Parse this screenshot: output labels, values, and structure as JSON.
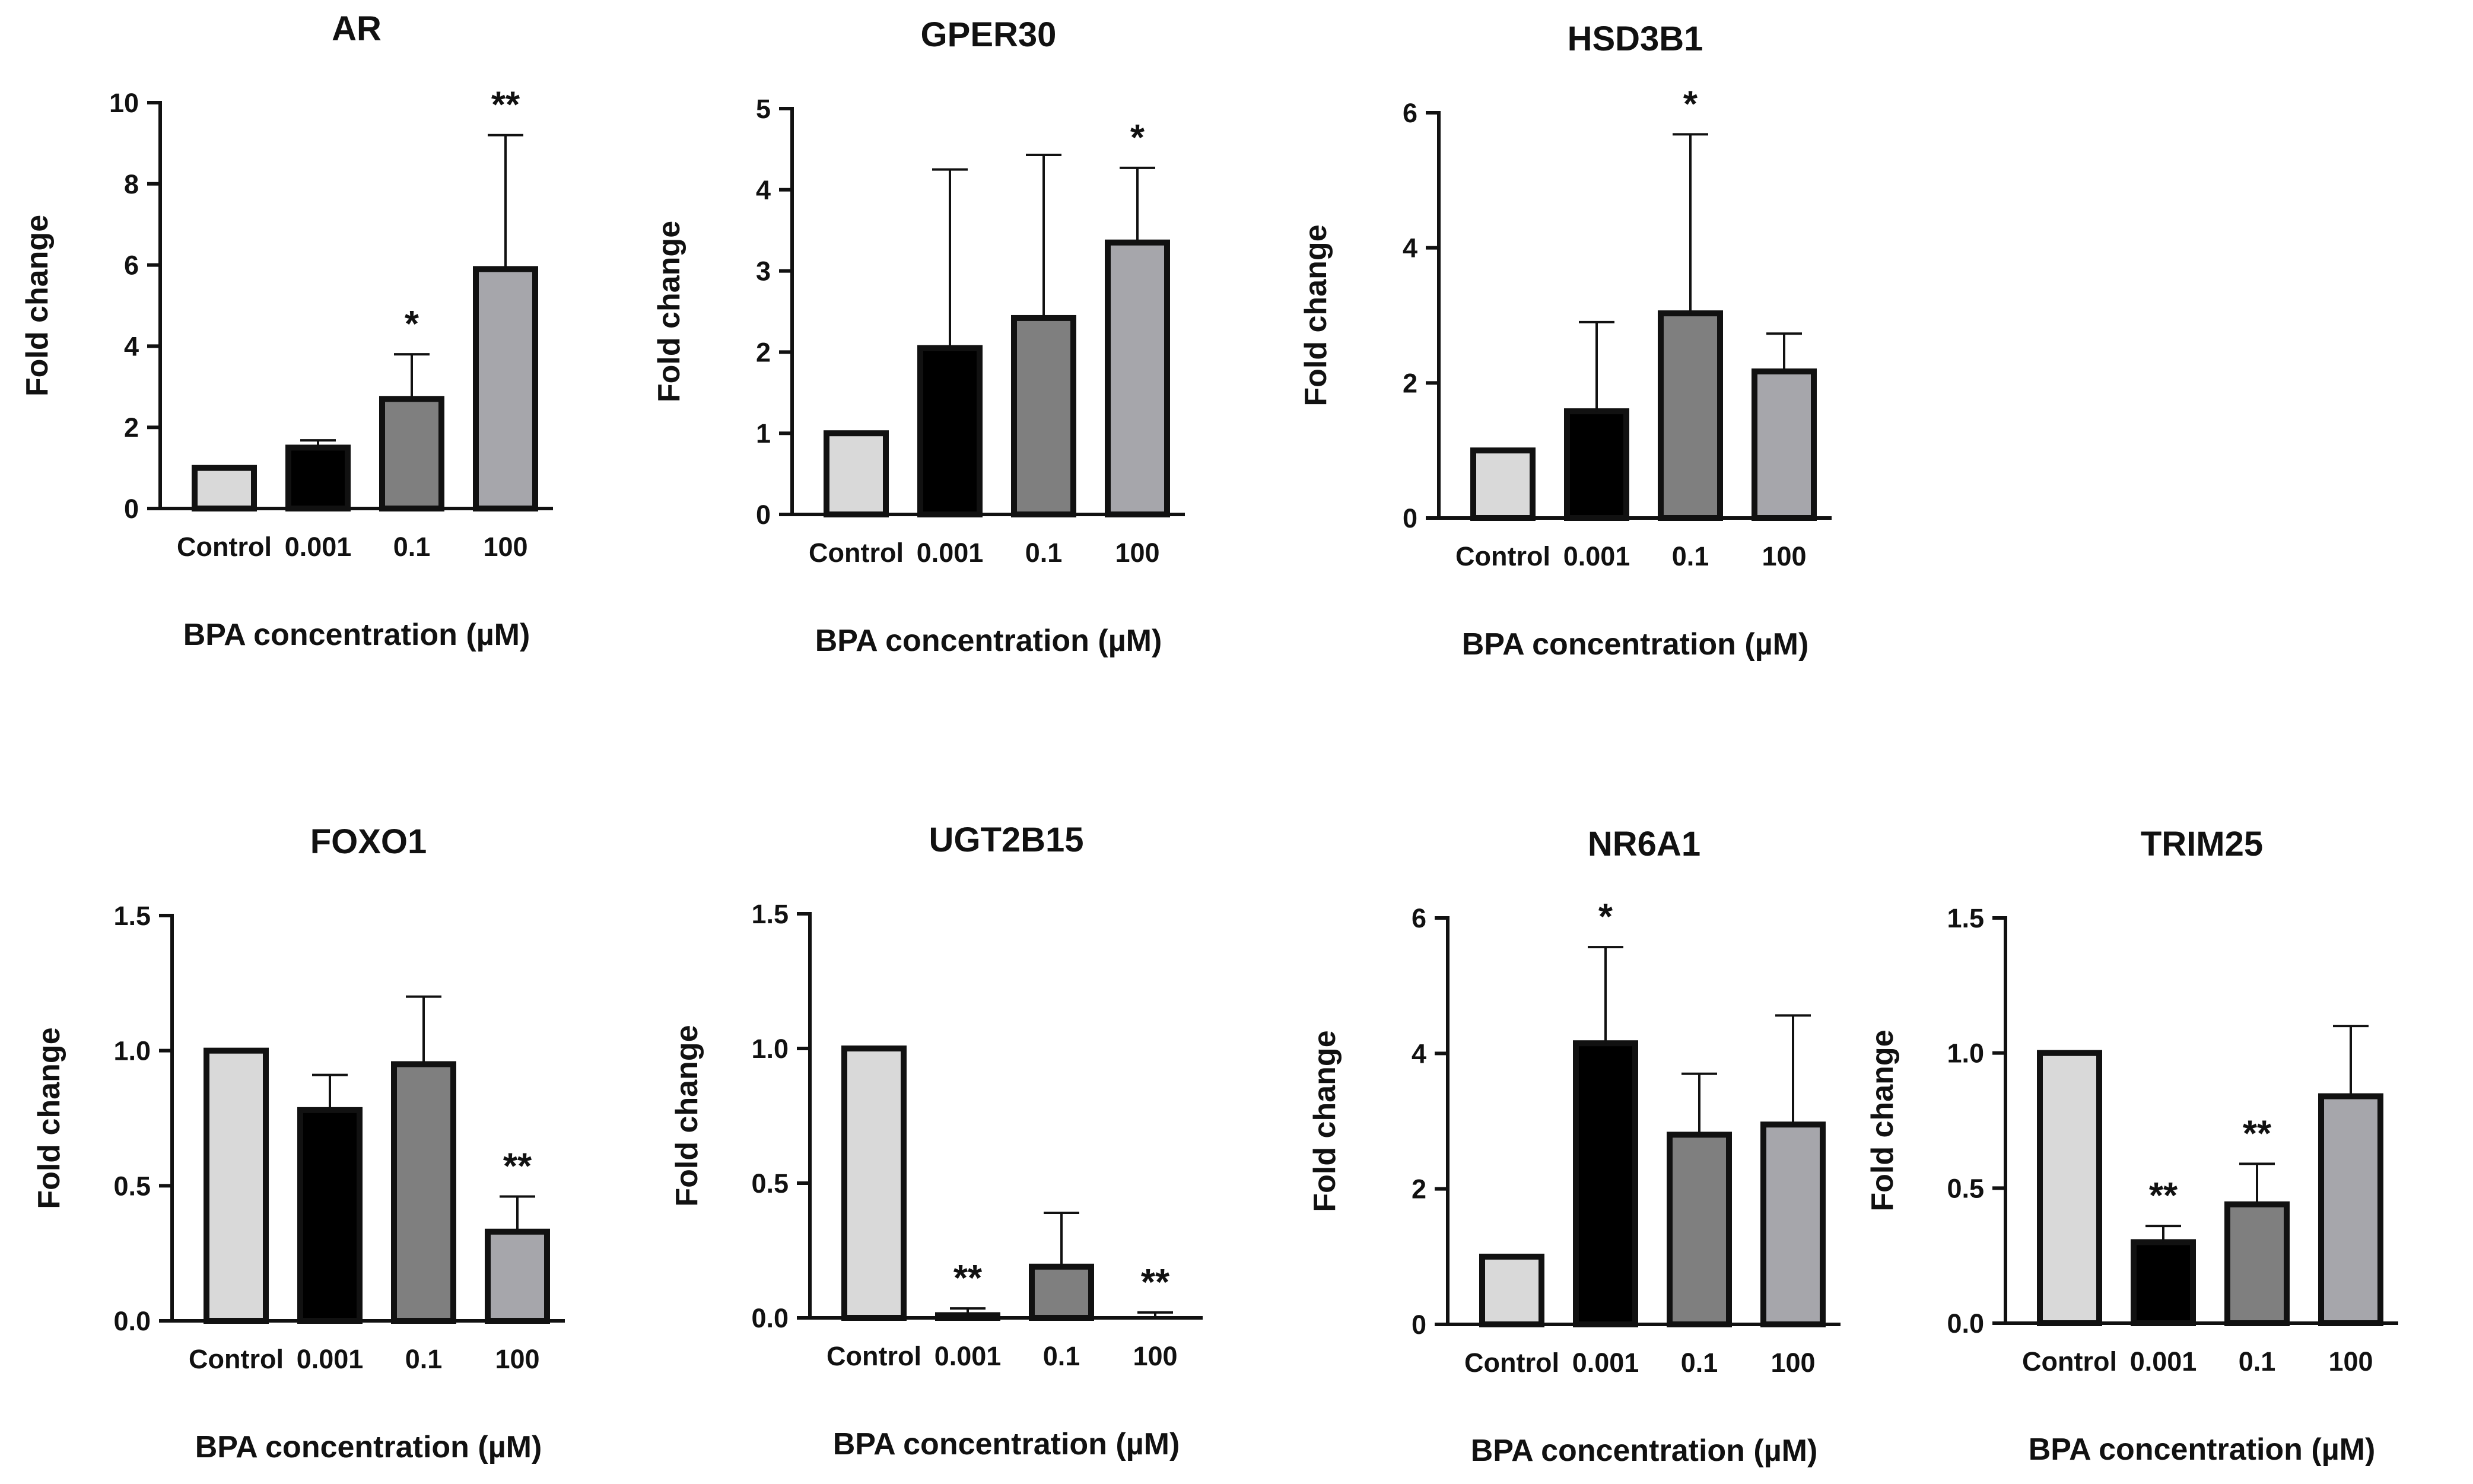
{
  "figure": {
    "bar_colors": [
      "#d9d9d9",
      "#000000",
      "#7f7f7f",
      "#a6a6ab"
    ],
    "axis_color": "#111111"
  },
  "chart_data": [
    {
      "type": "bar",
      "title": "AR",
      "xlabel": "BPA concentration (µM)",
      "ylabel": "Fold change",
      "categories": [
        "Control",
        "0.001",
        "0.1",
        "100"
      ],
      "values": [
        1.0,
        1.5,
        2.7,
        5.9
      ],
      "error_upper": [
        1.0,
        1.68,
        3.8,
        9.2
      ],
      "significance": [
        "",
        "",
        "*",
        "**"
      ],
      "ylim": [
        0,
        10
      ],
      "yticks": [
        0,
        2,
        4,
        6,
        8,
        10
      ],
      "ytick_labels": [
        "0",
        "2",
        "4",
        "6",
        "8",
        "10"
      ]
    },
    {
      "type": "bar",
      "title": "GPER30",
      "xlabel": "BPA concentration (µM)",
      "ylabel": "Fold change",
      "categories": [
        "Control",
        "0.001",
        "0.1",
        "100"
      ],
      "values": [
        1.0,
        2.05,
        2.42,
        3.35
      ],
      "error_upper": [
        1.0,
        4.25,
        4.43,
        4.27
      ],
      "significance": [
        "",
        "",
        "",
        "*"
      ],
      "ylim": [
        0,
        5
      ],
      "yticks": [
        0,
        1,
        2,
        3,
        4,
        5
      ],
      "ytick_labels": [
        "0",
        "1",
        "2",
        "3",
        "4",
        "5"
      ]
    },
    {
      "type": "bar",
      "title": "HSD3B1",
      "xlabel": "BPA concentration (µM)",
      "ylabel": "Fold change",
      "categories": [
        "Control",
        "0.001",
        "0.1",
        "100"
      ],
      "values": [
        1.0,
        1.58,
        3.03,
        2.17
      ],
      "error_upper": [
        1.0,
        2.9,
        5.68,
        2.73
      ],
      "significance": [
        "",
        "",
        "*",
        ""
      ],
      "ylim": [
        0,
        6
      ],
      "yticks": [
        0,
        2,
        4,
        6
      ],
      "ytick_labels": [
        "0",
        "2",
        "4",
        "6"
      ]
    },
    {
      "type": "bar",
      "title": "FOXO1",
      "xlabel": "BPA concentration (µM)",
      "ylabel": "Fold change",
      "categories": [
        "Control",
        "0.001",
        "0.1",
        "100"
      ],
      "values": [
        1.0,
        0.78,
        0.95,
        0.33
      ],
      "error_upper": [
        1.0,
        0.91,
        1.2,
        0.46
      ],
      "significance": [
        "",
        "",
        "",
        "**"
      ],
      "ylim": [
        0,
        1.5
      ],
      "yticks": [
        0,
        0.5,
        1.0,
        1.5
      ],
      "ytick_labels": [
        "0.0",
        "0.5",
        "1.0",
        "1.5"
      ]
    },
    {
      "type": "bar",
      "title": "UGT2B15",
      "xlabel": "BPA concentration (µM)",
      "ylabel": "Fold change",
      "categories": [
        "Control",
        "0.001",
        "0.1",
        "100"
      ],
      "values": [
        1.0,
        0.01,
        0.19,
        0.0
      ],
      "error_upper": [
        1.0,
        0.035,
        0.39,
        0.02
      ],
      "significance": [
        "",
        "**",
        "",
        "**"
      ],
      "ylim": [
        0,
        1.5
      ],
      "yticks": [
        0,
        0.5,
        1.0,
        1.5
      ],
      "ytick_labels": [
        "0.0",
        "0.5",
        "1.0",
        "1.5"
      ]
    },
    {
      "type": "bar",
      "title": "NR6A1",
      "xlabel": "BPA concentration (µM)",
      "ylabel": "Fold change",
      "categories": [
        "Control",
        "0.001",
        "0.1",
        "100"
      ],
      "values": [
        1.0,
        4.15,
        2.8,
        2.95
      ],
      "error_upper": [
        1.0,
        5.57,
        3.7,
        4.56
      ],
      "significance": [
        "",
        "*",
        "",
        ""
      ],
      "ylim": [
        0,
        6
      ],
      "yticks": [
        0,
        2,
        4,
        6
      ],
      "ytick_labels": [
        "0",
        "2",
        "4",
        "6"
      ]
    },
    {
      "type": "bar",
      "title": "TRIM25",
      "xlabel": "BPA concentration (µM)",
      "ylabel": "Fold change",
      "categories": [
        "Control",
        "0.001",
        "0.1",
        "100"
      ],
      "values": [
        1.0,
        0.3,
        0.44,
        0.84
      ],
      "error_upper": [
        1.0,
        0.36,
        0.59,
        1.1
      ],
      "significance": [
        "",
        "**",
        "**",
        ""
      ],
      "ylim": [
        0,
        1.5
      ],
      "yticks": [
        0,
        0.5,
        1.0,
        1.5
      ],
      "ytick_labels": [
        "0.0",
        "0.5",
        "1.0",
        "1.5"
      ]
    }
  ]
}
